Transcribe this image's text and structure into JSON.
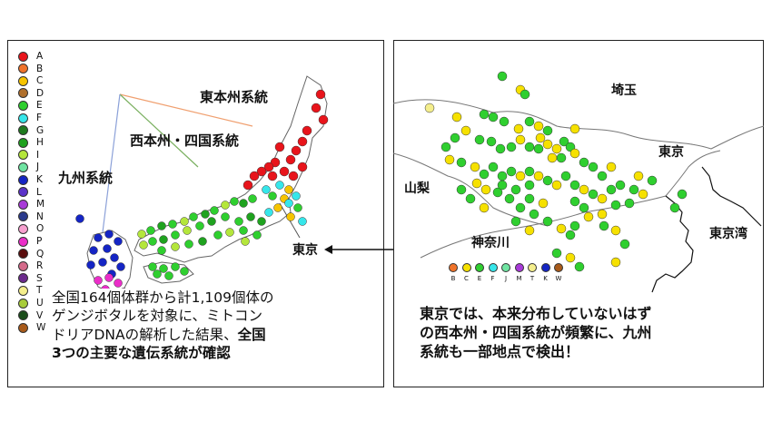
{
  "legend": {
    "items": [
      {
        "label": "A",
        "color": "#e8141b"
      },
      {
        "label": "B",
        "color": "#f0732a"
      },
      {
        "label": "C",
        "color": "#f6c400"
      },
      {
        "label": "D",
        "color": "#b0702c"
      },
      {
        "label": "E",
        "color": "#2fcf2f"
      },
      {
        "label": "F",
        "color": "#36e6ea"
      },
      {
        "label": "G",
        "color": "#1f7a1f"
      },
      {
        "label": "H",
        "color": "#1fa21f"
      },
      {
        "label": "I",
        "color": "#b4e63c"
      },
      {
        "label": "J",
        "color": "#6fe4a2"
      },
      {
        "label": "K",
        "color": "#1525c4"
      },
      {
        "label": "L",
        "color": "#5a32c8"
      },
      {
        "label": "M",
        "color": "#a83ad8"
      },
      {
        "label": "N",
        "color": "#2a3a8c"
      },
      {
        "label": "O",
        "color": "#f7a0cf"
      },
      {
        "label": "P",
        "color": "#ea2ec8"
      },
      {
        "label": "Q",
        "color": "#5a0d0d"
      },
      {
        "label": "R",
        "color": "#d46a8a"
      },
      {
        "label": "S",
        "color": "#6b2a8c"
      },
      {
        "label": "T",
        "color": "#f4ee8c"
      },
      {
        "label": "U",
        "color": "#a8cc3a"
      },
      {
        "label": "V",
        "color": "#1b4d1b"
      },
      {
        "label": "W",
        "color": "#a85a1a"
      }
    ]
  },
  "left_map": {
    "lineage_east": "東本州系統",
    "lineage_west": "西本州・四国系統",
    "lineage_kyushu": "九州系統",
    "tokyo_label": "東京"
  },
  "left_caption": {
    "line1": "全国164個体群から計1,109個体の",
    "line2": "ゲンジボタルを対象に、ミトコン",
    "line3_normal": "ドリアDNAの解析した結果、",
    "line3_bold": "全国",
    "line4": "3つの主要な遺伝系統が確認"
  },
  "right_map": {
    "saitama": "埼玉",
    "tokyo": "東京",
    "yamanashi": "山梨",
    "kanagawa": "神奈川",
    "tokyo_bay": "東京湾"
  },
  "cluster_legend": [
    {
      "label": "B",
      "color": "#f0732a"
    },
    {
      "label": "C",
      "color": "#f6e100"
    },
    {
      "label": "E",
      "color": "#2fcf2f"
    },
    {
      "label": "F",
      "color": "#36e6ea"
    },
    {
      "label": "J",
      "color": "#6fe4a2"
    },
    {
      "label": "M",
      "color": "#a83ad8"
    },
    {
      "label": "T",
      "color": "#f4ee8c"
    },
    {
      "label": "K",
      "color": "#1525c4"
    },
    {
      "label": "W",
      "color": "#a85a1a"
    }
  ],
  "right_caption": {
    "line1": "東京では、本来分布していないはず",
    "line2": "の西本州・四国系統が頻繁に、九州",
    "line3": "系統も一部地点で検出！"
  }
}
